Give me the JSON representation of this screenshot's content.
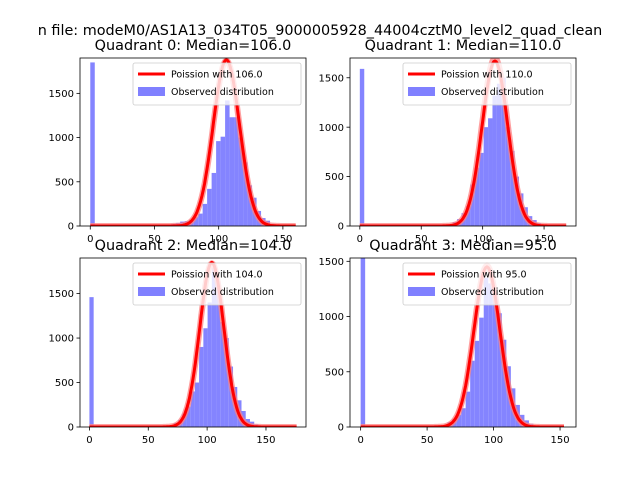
{
  "figure": {
    "suptitle": "n file: modeM0/AS1A13_034T05_9000005928_44004cztM0_level2_quad_clean"
  },
  "chart_data": [
    {
      "type": "bar",
      "title": "Quadrant 0: Median=106.0",
      "xlim": [
        -8,
        168
      ],
      "ylim": [
        0,
        1900
      ],
      "xticks": [
        0,
        50,
        100,
        150
      ],
      "yticks": [
        0,
        500,
        1000,
        1500
      ],
      "grid": false,
      "legend_position": "top-right",
      "legend": [
        "Poission with 106.0",
        "Observed distribution"
      ],
      "bin_width": 3.5,
      "bins": [
        {
          "x": 0,
          "y": 1850
        },
        {
          "x": 63,
          "y": 25
        },
        {
          "x": 66.5,
          "y": 35
        },
        {
          "x": 70,
          "y": 50
        },
        {
          "x": 73.5,
          "y": 55
        },
        {
          "x": 77,
          "y": 70
        },
        {
          "x": 80.5,
          "y": 100
        },
        {
          "x": 84,
          "y": 140
        },
        {
          "x": 87.5,
          "y": 250
        },
        {
          "x": 91,
          "y": 420
        },
        {
          "x": 94.5,
          "y": 600
        },
        {
          "x": 98,
          "y": 960
        },
        {
          "x": 101.5,
          "y": 1010
        },
        {
          "x": 105,
          "y": 1420
        },
        {
          "x": 108.5,
          "y": 1230
        },
        {
          "x": 112,
          "y": 1230
        },
        {
          "x": 115.5,
          "y": 1000
        },
        {
          "x": 119,
          "y": 720
        },
        {
          "x": 122.5,
          "y": 460
        },
        {
          "x": 126,
          "y": 320
        },
        {
          "x": 129.5,
          "y": 170
        },
        {
          "x": 133,
          "y": 90
        },
        {
          "x": 136.5,
          "y": 60
        },
        {
          "x": 140,
          "y": 25
        },
        {
          "x": 143.5,
          "y": 10
        }
      ],
      "poisson": {
        "mean": 106,
        "peak": 1880,
        "x_range": [
          0,
          160
        ]
      },
      "faint_line": {
        "mean": 106,
        "peak": 1870
      }
    },
    {
      "type": "bar",
      "title": "Quadrant 1: Median=110.0",
      "xlim": [
        -8,
        176
      ],
      "ylim": [
        0,
        1700
      ],
      "xticks": [
        0,
        50,
        100,
        150
      ],
      "yticks": [
        0,
        500,
        1000,
        1500
      ],
      "grid": false,
      "legend_position": "top-right",
      "legend": [
        "Poission with 110.0",
        "Observed distribution"
      ],
      "bin_width": 3.6,
      "bins": [
        {
          "x": 0,
          "y": 1590
        },
        {
          "x": 72,
          "y": 20
        },
        {
          "x": 75.6,
          "y": 40
        },
        {
          "x": 79.2,
          "y": 70
        },
        {
          "x": 82.8,
          "y": 130
        },
        {
          "x": 86.4,
          "y": 200
        },
        {
          "x": 90,
          "y": 420
        },
        {
          "x": 93.6,
          "y": 590
        },
        {
          "x": 97.2,
          "y": 740
        },
        {
          "x": 100.8,
          "y": 1000
        },
        {
          "x": 104.4,
          "y": 1090
        },
        {
          "x": 108,
          "y": 1320
        },
        {
          "x": 111.6,
          "y": 1440
        },
        {
          "x": 115.2,
          "y": 1500
        },
        {
          "x": 118.8,
          "y": 1000
        },
        {
          "x": 122.4,
          "y": 760
        },
        {
          "x": 126,
          "y": 500
        },
        {
          "x": 129.6,
          "y": 330
        },
        {
          "x": 133.2,
          "y": 190
        },
        {
          "x": 136.8,
          "y": 100
        },
        {
          "x": 140.4,
          "y": 60
        },
        {
          "x": 144,
          "y": 30
        },
        {
          "x": 147.6,
          "y": 10
        }
      ],
      "poisson": {
        "mean": 110,
        "peak": 1670,
        "x_range": [
          0,
          168
        ]
      },
      "faint_line": {
        "mean": 110,
        "peak": 1700
      }
    },
    {
      "type": "bar",
      "title": "Quadrant 2: Median=104.0",
      "xlim": [
        -8,
        184
      ],
      "ylim": [
        0,
        1900
      ],
      "xticks": [
        0,
        50,
        100,
        150
      ],
      "yticks": [
        0,
        500,
        1000,
        1500
      ],
      "grid": false,
      "legend_position": "top-right",
      "legend": [
        "Poission with 104.0",
        "Observed distribution"
      ],
      "bin_width": 3.6,
      "bins": [
        {
          "x": 0,
          "y": 1460
        },
        {
          "x": 68,
          "y": 20
        },
        {
          "x": 71.6,
          "y": 45
        },
        {
          "x": 75.2,
          "y": 80
        },
        {
          "x": 78.8,
          "y": 150
        },
        {
          "x": 82.4,
          "y": 230
        },
        {
          "x": 86,
          "y": 400
        },
        {
          "x": 89.6,
          "y": 500
        },
        {
          "x": 93.2,
          "y": 900
        },
        {
          "x": 96.8,
          "y": 1110
        },
        {
          "x": 100.4,
          "y": 1400
        },
        {
          "x": 104,
          "y": 1790
        },
        {
          "x": 107.6,
          "y": 1600
        },
        {
          "x": 111.2,
          "y": 1180
        },
        {
          "x": 114.8,
          "y": 1000
        },
        {
          "x": 118.4,
          "y": 680
        },
        {
          "x": 122,
          "y": 450
        },
        {
          "x": 125.6,
          "y": 300
        },
        {
          "x": 129.2,
          "y": 180
        },
        {
          "x": 132.8,
          "y": 90
        },
        {
          "x": 136.4,
          "y": 60
        },
        {
          "x": 140,
          "y": 30
        },
        {
          "x": 143.6,
          "y": 15
        }
      ],
      "poisson": {
        "mean": 104,
        "peak": 1850,
        "x_range": [
          0,
          176
        ]
      },
      "faint_line": {
        "mean": 104,
        "peak": 1840
      }
    },
    {
      "type": "bar",
      "title": "Quadrant 3: Median=95.0",
      "xlim": [
        -8,
        162
      ],
      "ylim": [
        0,
        1530
      ],
      "xticks": [
        0,
        50,
        100,
        150
      ],
      "yticks": [
        0,
        500,
        1000,
        1500
      ],
      "grid": false,
      "legend_position": "top-right",
      "legend": [
        "Poission with 95.0",
        "Observed distribution"
      ],
      "bin_width": 3.4,
      "bins": [
        {
          "x": 0,
          "y": 1530
        },
        {
          "x": 62,
          "y": 20
        },
        {
          "x": 65.4,
          "y": 45
        },
        {
          "x": 68.8,
          "y": 70
        },
        {
          "x": 72.2,
          "y": 110
        },
        {
          "x": 75.6,
          "y": 170
        },
        {
          "x": 79,
          "y": 320
        },
        {
          "x": 82.4,
          "y": 600
        },
        {
          "x": 85.8,
          "y": 780
        },
        {
          "x": 89.2,
          "y": 990
        },
        {
          "x": 92.6,
          "y": 1350
        },
        {
          "x": 96,
          "y": 1300
        },
        {
          "x": 99.4,
          "y": 1200
        },
        {
          "x": 102.8,
          "y": 1030
        },
        {
          "x": 106.2,
          "y": 790
        },
        {
          "x": 109.6,
          "y": 550
        },
        {
          "x": 113,
          "y": 350
        },
        {
          "x": 116.4,
          "y": 200
        },
        {
          "x": 119.8,
          "y": 110
        },
        {
          "x": 123.2,
          "y": 60
        },
        {
          "x": 126.6,
          "y": 30
        },
        {
          "x": 130,
          "y": 10
        }
      ],
      "poisson": {
        "mean": 95,
        "peak": 1450,
        "x_range": [
          0,
          153
        ]
      },
      "faint_line": {
        "mean": 95,
        "peak": 1460
      }
    }
  ],
  "colors": {
    "poisson_line": "#ff0000",
    "observed_fill": "#8080ff",
    "faint_line": "#ff8080",
    "axis": "#000000"
  }
}
